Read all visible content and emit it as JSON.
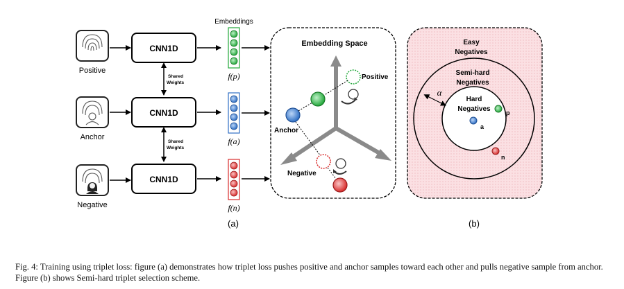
{
  "inputs": {
    "positive_label": "Positive",
    "anchor_label": "Anchor",
    "negative_label": "Negative"
  },
  "network": {
    "block_label": "CNN1D",
    "shared_weights_line1": "Shared",
    "shared_weights_line2": "Weights"
  },
  "embeddings": {
    "title": "Embeddings",
    "fp": "f(p)",
    "fa": "f(a)",
    "fn": "f(n)"
  },
  "embedding_space": {
    "title": "Embedding Space",
    "positive_label": "Positive",
    "anchor_label": "Anchor",
    "negative_label": "Negative"
  },
  "scheme": {
    "easy_line1": "Easy",
    "easy_line2": "Negatives",
    "semi_line1": "Semi-hard",
    "semi_line2": "Negatives",
    "hard_line1": "Hard",
    "hard_line2": "Negatives",
    "alpha": "α",
    "a": "a",
    "p": "p",
    "n": "n"
  },
  "subfig": {
    "a": "(a)",
    "b": "(b)"
  },
  "caption": "Fig. 4: Training using triplet loss: figure (a) demonstrates how triplet loss pushes positive and anchor samples toward each other and pulls negative sample from anchor. Figure (b) shows Semi-hard triplet selection scheme.",
  "colors": {
    "positive": "#22a83a",
    "anchor": "#2f6fc4",
    "negative": "#d92b2b",
    "scheme_bg": "#fadadd"
  }
}
